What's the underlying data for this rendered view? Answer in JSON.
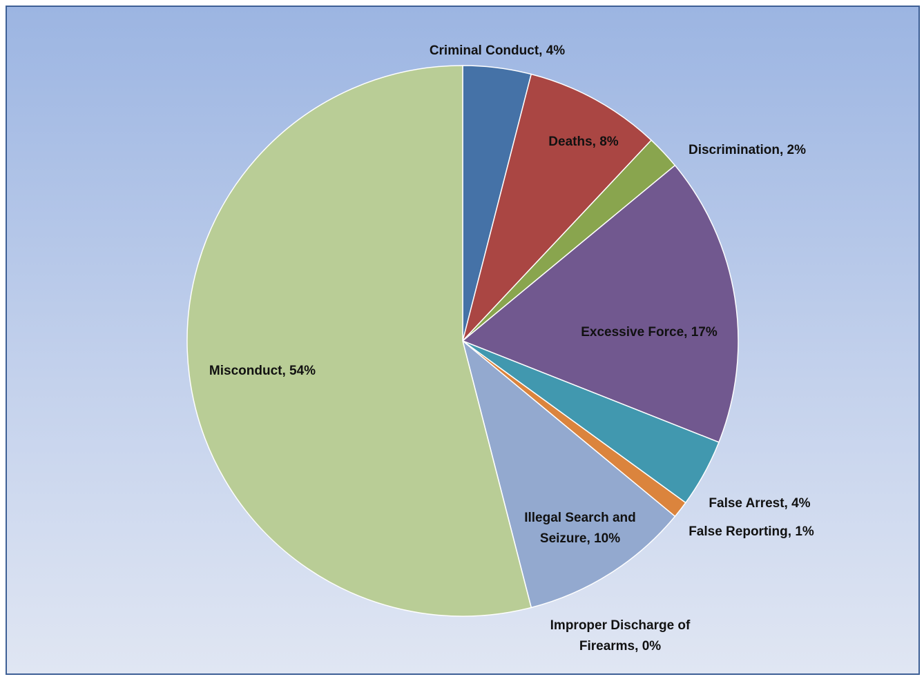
{
  "chart_data": {
    "type": "pie",
    "categories": [
      "Criminal Conduct",
      "Deaths",
      "Discrimination",
      "Excessive Force",
      "False Arrest",
      "False Reporting",
      "Illegal Search and Seizure",
      "Improper Discharge of Firearms",
      "Misconduct"
    ],
    "values": [
      4,
      8,
      2,
      17,
      4,
      1,
      10,
      0,
      54
    ],
    "value_labels": [
      "4%",
      "8%",
      "2%",
      "17%",
      "4%",
      "1%",
      "10%",
      "0%",
      "54%"
    ],
    "colors": [
      "#4572a7",
      "#aa4643",
      "#89a54e",
      "#71588f",
      "#4198af",
      "#db843d",
      "#93a9cf",
      "#a47d7c",
      "#b9cd96"
    ]
  }
}
